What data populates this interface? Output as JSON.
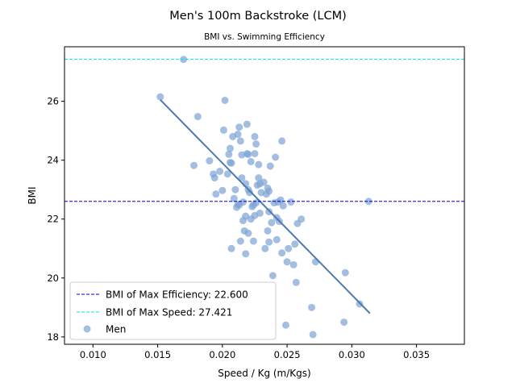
{
  "chart_data": {
    "type": "scatter",
    "title": "Men's 100m Backstroke (LCM)",
    "subtitle": "BMI vs. Swimming Efficiency",
    "xlabel": "Speed / Kg (m/Kgs)",
    "ylabel": "BMI",
    "xlim": [
      0.0078,
      0.0387
    ],
    "ylim": [
      17.75,
      27.85
    ],
    "xticks": [
      "0.010",
      "0.015",
      "0.020",
      "0.025",
      "0.030",
      "0.035"
    ],
    "yticks": [
      "18",
      "20",
      "22",
      "24",
      "26"
    ],
    "grid": false,
    "legend_position": "lower-left",
    "series": [
      {
        "name": "Men",
        "color": "#7ea3d4",
        "points": [
          [
            0.0152,
            26.15
          ],
          [
            0.017,
            27.42
          ],
          [
            0.0178,
            23.82
          ],
          [
            0.0181,
            25.48
          ],
          [
            0.019,
            23.98
          ],
          [
            0.0193,
            23.53
          ],
          [
            0.0194,
            23.4
          ],
          [
            0.0195,
            22.85
          ],
          [
            0.0198,
            23.62
          ],
          [
            0.02,
            22.97
          ],
          [
            0.0201,
            25.02
          ],
          [
            0.0202,
            26.03
          ],
          [
            0.0204,
            23.53
          ],
          [
            0.0205,
            24.2
          ],
          [
            0.0206,
            24.4
          ],
          [
            0.0206,
            23.92
          ],
          [
            0.0207,
            21.0
          ],
          [
            0.0207,
            23.9
          ],
          [
            0.0208,
            24.8
          ],
          [
            0.0209,
            22.7
          ],
          [
            0.021,
            23.0
          ],
          [
            0.0211,
            22.4
          ],
          [
            0.0212,
            22.5
          ],
          [
            0.0212,
            24.88
          ],
          [
            0.0213,
            22.48
          ],
          [
            0.0213,
            25.12
          ],
          [
            0.0214,
            24.65
          ],
          [
            0.0214,
            21.25
          ],
          [
            0.0215,
            24.18
          ],
          [
            0.0215,
            23.4
          ],
          [
            0.0216,
            21.95
          ],
          [
            0.0216,
            22.58
          ],
          [
            0.0217,
            21.6
          ],
          [
            0.0218,
            23.2
          ],
          [
            0.0218,
            20.82
          ],
          [
            0.0218,
            22.1
          ],
          [
            0.0219,
            24.22
          ],
          [
            0.0219,
            25.22
          ],
          [
            0.022,
            21.52
          ],
          [
            0.022,
            23.0
          ],
          [
            0.022,
            24.2
          ],
          [
            0.0221,
            22.9
          ],
          [
            0.0222,
            22.0
          ],
          [
            0.0222,
            23.95
          ],
          [
            0.0223,
            22.42
          ],
          [
            0.0224,
            21.25
          ],
          [
            0.0224,
            22.48
          ],
          [
            0.0225,
            24.22
          ],
          [
            0.0225,
            24.8
          ],
          [
            0.0225,
            22.12
          ],
          [
            0.0226,
            24.55
          ],
          [
            0.0226,
            22.55
          ],
          [
            0.0227,
            23.15
          ],
          [
            0.0228,
            23.4
          ],
          [
            0.0228,
            23.85
          ],
          [
            0.0229,
            22.2
          ],
          [
            0.0229,
            23.2
          ],
          [
            0.023,
            22.9
          ],
          [
            0.0232,
            23.25
          ],
          [
            0.0233,
            21.0
          ],
          [
            0.0234,
            22.85
          ],
          [
            0.0235,
            21.6
          ],
          [
            0.0235,
            23.05
          ],
          [
            0.0236,
            21.22
          ],
          [
            0.0236,
            22.25
          ],
          [
            0.0236,
            22.95
          ],
          [
            0.0237,
            23.8
          ],
          [
            0.0238,
            21.88
          ],
          [
            0.0239,
            20.08
          ],
          [
            0.024,
            22.55
          ],
          [
            0.0241,
            24.1
          ],
          [
            0.0242,
            22.05
          ],
          [
            0.0242,
            21.3
          ],
          [
            0.0243,
            22.58
          ],
          [
            0.0244,
            21.92
          ],
          [
            0.0245,
            22.65
          ],
          [
            0.0246,
            24.65
          ],
          [
            0.0246,
            20.85
          ],
          [
            0.0247,
            22.45
          ],
          [
            0.0249,
            18.4
          ],
          [
            0.025,
            20.55
          ],
          [
            0.0251,
            21.0
          ],
          [
            0.0253,
            22.58
          ],
          [
            0.0255,
            20.45
          ],
          [
            0.0256,
            21.15
          ],
          [
            0.0257,
            19.85
          ],
          [
            0.0258,
            21.85
          ],
          [
            0.0261,
            22.0
          ],
          [
            0.0269,
            19.0
          ],
          [
            0.027,
            18.08
          ],
          [
            0.0272,
            20.55
          ],
          [
            0.0294,
            18.5
          ],
          [
            0.0295,
            20.18
          ],
          [
            0.0306,
            19.12
          ],
          [
            0.0313,
            22.6
          ]
        ]
      }
    ],
    "trend_line": {
      "color": "#4a7ab0",
      "points": [
        [
          0.0152,
          26.05
        ],
        [
          0.0314,
          18.8
        ]
      ]
    },
    "reference_lines": [
      {
        "name": "BMI of Max Efficiency: 22.600",
        "y": 22.6,
        "color": "#0000cc",
        "style": "dashed"
      },
      {
        "name": "BMI of Max Speed: 27.421",
        "y": 27.421,
        "color": "#00e5e5",
        "style": "dashed"
      }
    ]
  }
}
